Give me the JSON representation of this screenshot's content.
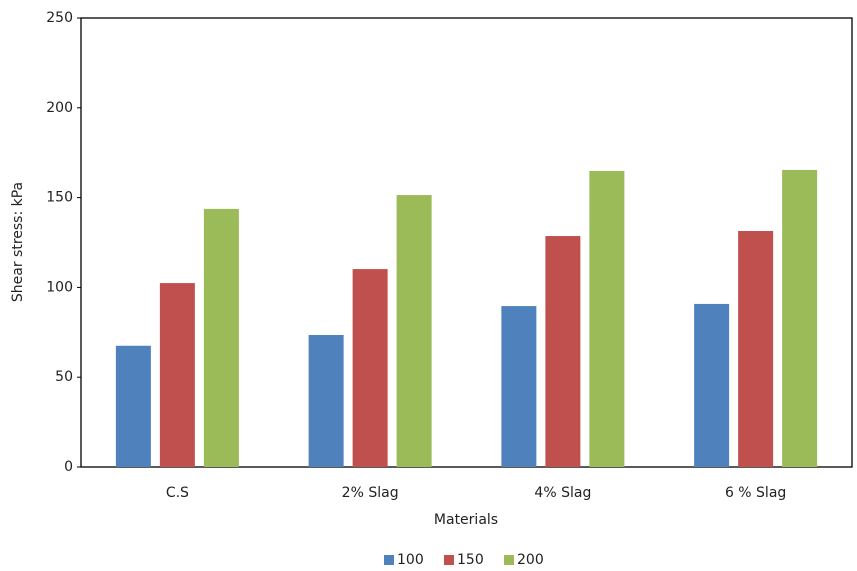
{
  "chart_data": {
    "type": "bar",
    "x_label": "Materials",
    "y_label": "Shear stress: kPa",
    "categories": [
      "C.S",
      "2% Slag",
      "4% Slag",
      "6 % Slag"
    ],
    "series": [
      {
        "name": "100",
        "color": "#4f81bd",
        "values": [
          67.5,
          73.5,
          89.6,
          90.8
        ]
      },
      {
        "name": "150",
        "color": "#c0504d",
        "values": [
          102.4,
          110.2,
          128.6,
          131.4
        ]
      },
      {
        "name": "200",
        "color": "#9bbb59",
        "values": [
          143.7,
          151.4,
          164.8,
          165.4
        ]
      }
    ],
    "ylim": [
      0,
      250
    ],
    "yticks": [
      0,
      50,
      100,
      150,
      200,
      250
    ],
    "grid": false,
    "legend": "bottom"
  }
}
